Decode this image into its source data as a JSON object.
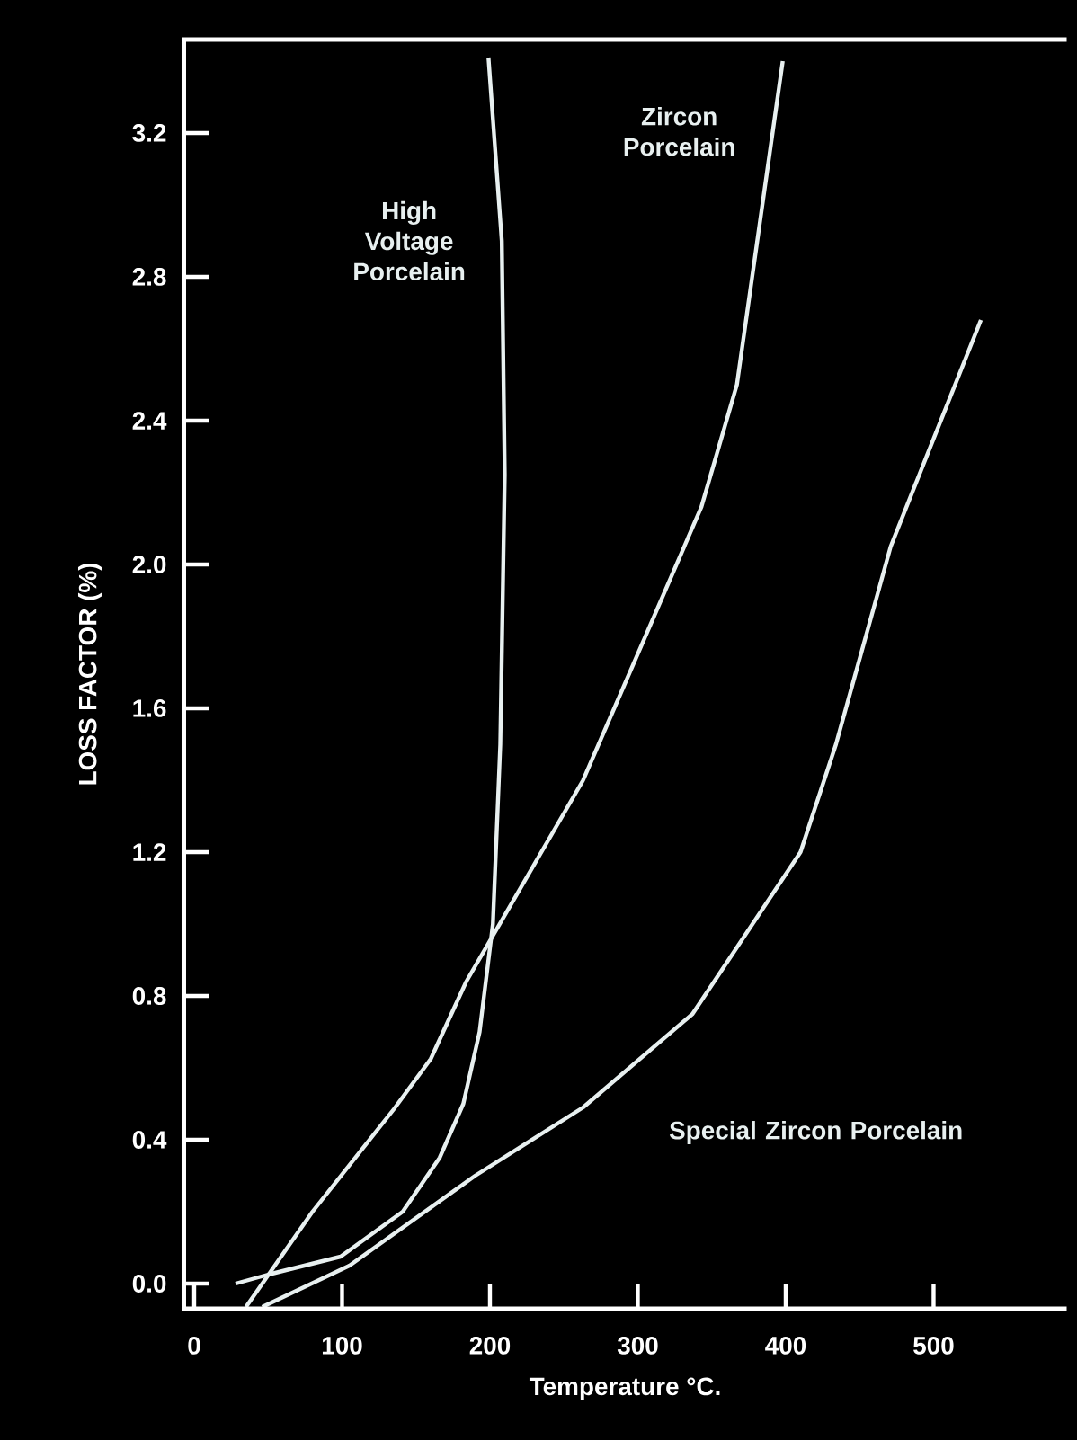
{
  "chart_data": {
    "type": "line",
    "xlabel": "Temperature °C.",
    "ylabel": "LOSS FACTOR (%)",
    "xlim": [
      -7,
      590
    ],
    "ylim": [
      -0.07,
      3.46
    ],
    "xticks": [
      0,
      100,
      200,
      300,
      400,
      500
    ],
    "yticks": [
      {
        "value": 0,
        "label": "0.0"
      },
      0.4,
      0.8,
      1.2,
      1.6,
      {
        "value": 2,
        "label": "2.0"
      },
      2.4,
      2.8,
      3.2
    ],
    "grid": false,
    "legend": false,
    "marker": "none",
    "line_style": "solid",
    "series": [
      {
        "name": "High Voltage Porcelain",
        "color": "#e8f0f0",
        "x": [
          28,
          50,
          99,
          141,
          166,
          182,
          193,
          202,
          207,
          210,
          208,
          199
        ],
        "values": [
          0.0,
          0.025,
          0.075,
          0.2,
          0.35,
          0.5,
          0.7,
          1.0,
          1.5,
          2.25,
          2.9,
          3.41
        ]
      },
      {
        "name": "Zircon Porcelain",
        "color": "#e8f0f0",
        "x": [
          35,
          80,
          135,
          160,
          184,
          263,
          343,
          367,
          398
        ],
        "values": [
          -0.065,
          0.2,
          0.485,
          0.625,
          0.84,
          1.4,
          2.16,
          2.5,
          3.4
        ]
      },
      {
        "name": "Special Zircon Porcelain",
        "color": "#e8f0f0",
        "x": [
          46,
          105,
          190,
          263,
          337,
          410,
          434,
          471,
          532
        ],
        "values": [
          -0.065,
          0.05,
          0.3,
          0.49,
          0.75,
          1.2,
          1.5,
          2.05,
          2.68
        ]
      }
    ]
  }
}
